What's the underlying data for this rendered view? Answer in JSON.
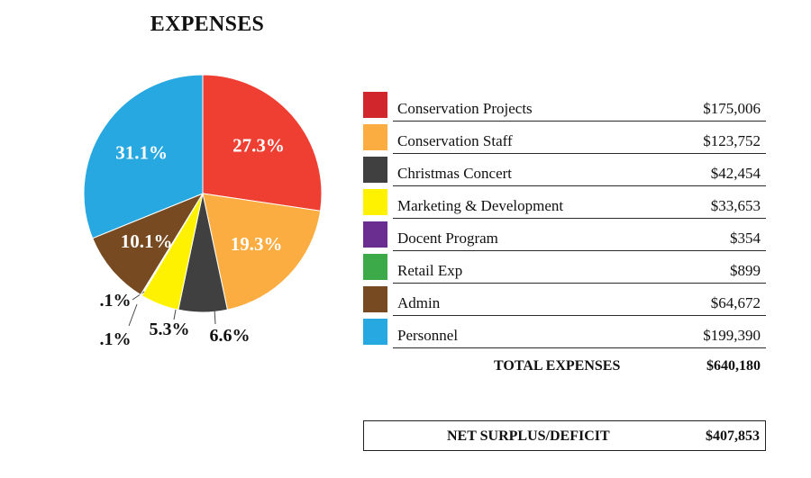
{
  "chart_data": {
    "type": "pie",
    "title": "EXPENSES",
    "slices": [
      {
        "label": "Conservation Projects",
        "value": 175006,
        "amount": "$175,006",
        "pct_label": "27.3%",
        "color": "#ef3f33"
      },
      {
        "label": "Conservation Staff",
        "value": 123752,
        "amount": "$123,752",
        "pct_label": "19.3%",
        "color": "#fbad41"
      },
      {
        "label": "Christmas Concert",
        "value": 42454,
        "amount": "$42,454",
        "pct_label": "6.6%",
        "color": "#404040"
      },
      {
        "label": "Marketing & Development",
        "value": 33653,
        "amount": "$33,653",
        "pct_label": "5.3%",
        "color": "#fff200"
      },
      {
        "label": "Docent Program",
        "value": 354,
        "amount": "$354",
        "pct_label": ".1%",
        "color": "#6a2d90"
      },
      {
        "label": "Retail Exp",
        "value": 899,
        "amount": "$899",
        "pct_label": ".1%",
        "color": "#3daa4a"
      },
      {
        "label": "Admin",
        "value": 64672,
        "amount": "$64,672",
        "pct_label": "10.1%",
        "color": "#774a21"
      },
      {
        "label": "Personnel",
        "value": 199390,
        "amount": "$199,390",
        "pct_label": "31.1%",
        "color": "#27a8e0"
      }
    ],
    "legend_legend_colors_note": ""
  },
  "legend_swatch_colors": [
    "#d0262c",
    "#fbad41",
    "#404040",
    "#fff200",
    "#6a2d90",
    "#3daa4a",
    "#774a21",
    "#27a8e0"
  ],
  "totals": {
    "total_label": "TOTAL EXPENSES",
    "total_value": "$640,180",
    "net_label": "NET SURPLUS/DEFICIT",
    "net_value": "$407,853"
  }
}
